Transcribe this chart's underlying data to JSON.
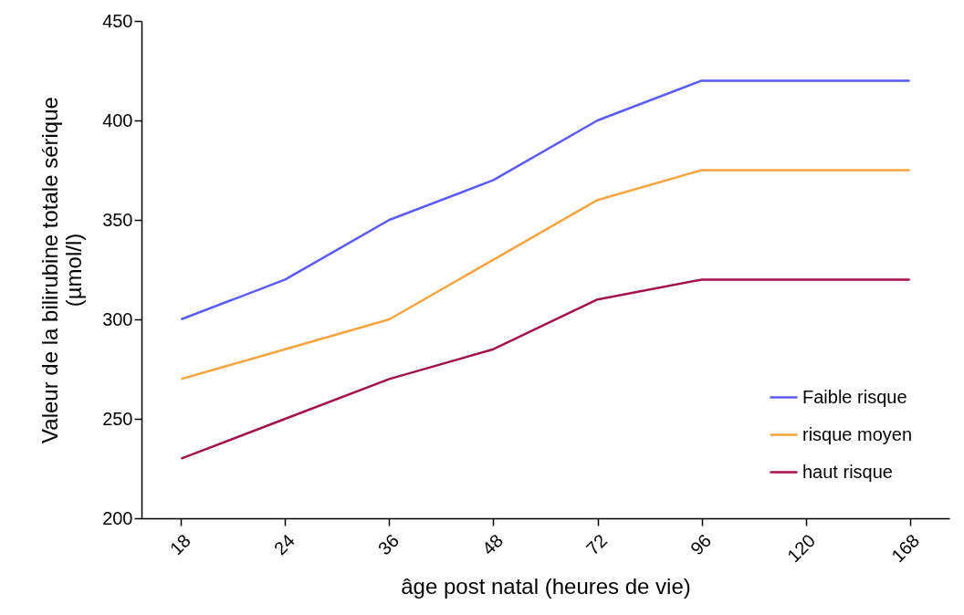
{
  "chart_data": {
    "type": "line",
    "xlabel": "âge post natal (heures de vie)",
    "ylabel": "Valeur de la bilirubine totale sérique\n(µmol/l)",
    "categories": [
      "18",
      "24",
      "36",
      "48",
      "72",
      "96",
      "120",
      "168"
    ],
    "series": [
      {
        "name": "Faible risque",
        "color": "#5b5bf5",
        "values": [
          300,
          320,
          350,
          370,
          400,
          420,
          420,
          420
        ]
      },
      {
        "name": "risque moyen",
        "color": "#f7a440",
        "values": [
          270,
          285,
          300,
          330,
          360,
          375,
          375,
          375
        ]
      },
      {
        "name": "haut risque",
        "color": "#a0124e",
        "values": [
          230,
          250,
          270,
          285,
          310,
          320,
          320,
          320
        ]
      }
    ],
    "ylim": [
      200,
      450
    ],
    "yticks": [
      200,
      250,
      300,
      350,
      400,
      450
    ],
    "grid": false,
    "legend": "bottom right"
  }
}
